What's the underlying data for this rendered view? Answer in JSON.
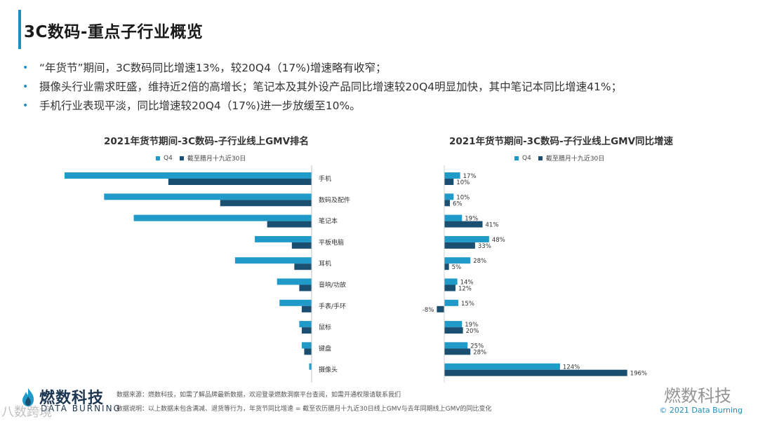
{
  "page": {
    "title": "3C数码-重点子行业概览",
    "bullets": [
      "“年货节”期间，3C数码同比增速13%，较20Q4（17%)增速略有收窄；",
      "摄像头行业需求旺盛，维持近2倍的高增长；笔记本及其外设产品同比增速较20Q4明显加快，其中笔记本同比增速41%；",
      "手机行业表现平淡，同比增速较20Q4（17%)进一步放缓至10%。"
    ]
  },
  "colors": {
    "q4": "#1f9ac9",
    "period": "#1b4f72",
    "accent": "#1f8fbf"
  },
  "chart_data": [
    {
      "type": "bar",
      "orientation": "horizontal",
      "title": "2021年货节期间-3C数码-子行业线上GMV排名",
      "legend": [
        "Q4",
        "截至腊月十九近30日"
      ],
      "categories": [
        "手机",
        "数码及配件",
        "笔记本",
        "平板电脑",
        "耳机",
        "音响/功放",
        "手表/手环",
        "鼠标",
        "键盘",
        "摄像头"
      ],
      "series": [
        {
          "name": "Q4",
          "values": [
            100,
            84,
            72,
            23,
            31,
            14,
            13,
            5,
            4,
            1
          ]
        },
        {
          "name": "截至腊月十九近30日",
          "values": [
            58,
            37,
            18,
            8,
            7,
            5,
            4,
            4,
            3,
            0
          ]
        }
      ]
    },
    {
      "type": "bar",
      "orientation": "horizontal",
      "title": "2021年货节期间-3C数码-子行业线上GMV同比增速",
      "legend": [
        "Q4",
        "截至腊月十九近30日"
      ],
      "categories": [
        "手机",
        "数码及配件",
        "笔记本",
        "平板电脑",
        "耳机",
        "音响/功放",
        "手表/手环",
        "鼠标",
        "键盘",
        "摄像头"
      ],
      "series": [
        {
          "name": "Q4",
          "values": [
            17,
            10,
            19,
            48,
            28,
            14,
            15,
            19,
            25,
            124
          ],
          "labels": [
            "17%",
            "10%",
            "19%",
            "48%",
            "28%",
            "14%",
            "15%",
            "19%",
            "25%",
            "124%"
          ]
        },
        {
          "name": "截至腊月十九近30日",
          "values": [
            10,
            6,
            41,
            33,
            5,
            12,
            -8,
            20,
            28,
            196
          ],
          "labels": [
            "10%",
            "6%",
            "41%",
            "33%",
            "5%",
            "12%",
            "-8%",
            "20%",
            "28%",
            "196%"
          ]
        }
      ]
    }
  ],
  "footer": {
    "brand": "燃数科技",
    "brand_sub": "DATA BURNING",
    "source": "数据来源：燃数科技，如需了解品牌最新数据，欢迎登录燃数洞察平台查阅，如需开通权限请联系我们",
    "note": "数据说明：以上数据未包含满减、退货等行为，年货节同比增速 = 截至农历腊月十九近30日线上GMV与去年同期线上GMV的同比变化",
    "copyright": "© 2021 Data Burning",
    "watermark_right": "燃数科技",
    "watermark_left": "八数跨境"
  }
}
